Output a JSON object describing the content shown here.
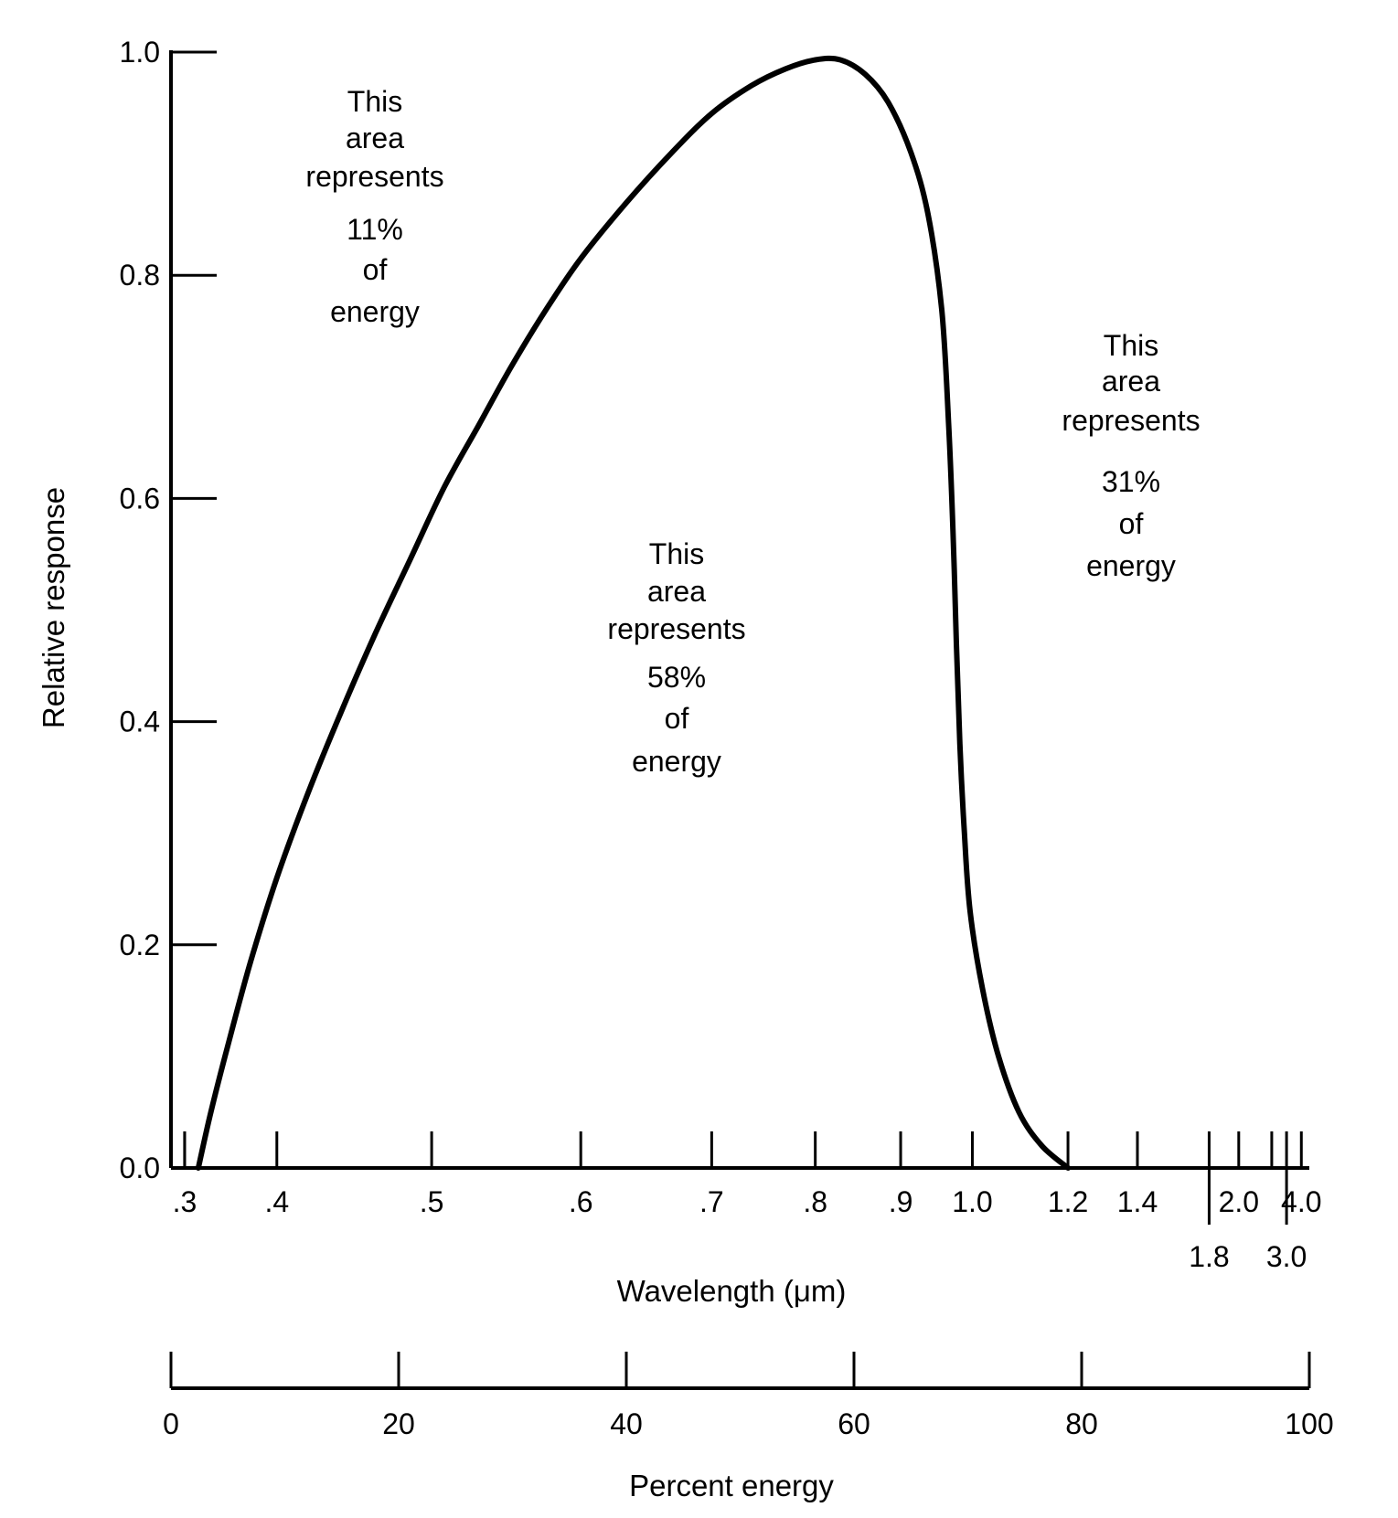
{
  "chart_data": {
    "type": "line",
    "title": "",
    "ylabel": "Relative response",
    "xlabel": "Wavelength (μm)",
    "ylim": [
      0,
      1.0
    ],
    "y_ticks": [
      "0.0",
      "0.2",
      "0.4",
      "0.6",
      "0.8",
      "1.0"
    ],
    "x_axis": {
      "label": "Wavelength (μm)",
      "scale": "percent-energy (nonlinear)",
      "ticks": [
        {
          "label": ".3",
          "energy": 1.2,
          "row": 1
        },
        {
          "label": ".4",
          "energy": 9.3,
          "row": 1
        },
        {
          "label": ".5",
          "energy": 22.9,
          "row": 1
        },
        {
          "label": ".6",
          "energy": 36.0,
          "row": 1
        },
        {
          "label": ".7",
          "energy": 47.5,
          "row": 1
        },
        {
          "label": ".8",
          "energy": 56.6,
          "row": 1
        },
        {
          "label": ".9",
          "energy": 64.1,
          "row": 1
        },
        {
          "label": "1.0",
          "energy": 70.4,
          "row": 1
        },
        {
          "label": "1.2",
          "energy": 78.8,
          "row": 1
        },
        {
          "label": "1.4",
          "energy": 84.9,
          "row": 1
        },
        {
          "label": "1.8",
          "energy": 91.2,
          "row": 2
        },
        {
          "label": "2.0",
          "energy": 93.8,
          "row": 1
        },
        {
          "label": "3.0",
          "energy": 98.0,
          "row": 2
        },
        {
          "label": "4.0",
          "energy": 99.3,
          "row": 1
        }
      ],
      "extra_tick_energy": [
        1.2,
        96.7
      ]
    },
    "secondary_x_axis": {
      "label": "Percent energy",
      "ticks": [
        "0",
        "20",
        "40",
        "60",
        "80",
        "100"
      ],
      "values": [
        0,
        20,
        40,
        60,
        80,
        100
      ],
      "xlim": [
        0,
        100
      ]
    },
    "series": [
      {
        "x_energy": [
          2.4,
          3.5,
          5.0,
          7.0,
          9.3,
          12.0,
          15.0,
          18.0,
          21.0,
          24.0,
          27.0,
          30.0,
          33.0,
          36.0,
          40.0,
          44.0,
          47.5,
          51.0,
          54.0,
          56.6,
          58.8,
          61.0,
          63.0,
          65.0,
          66.5,
          67.7,
          68.3,
          68.7,
          69.0,
          69.3,
          69.7,
          70.2,
          71.3,
          72.7,
          74.5,
          76.5,
          78.8
        ],
        "y": [
          0.0,
          0.05,
          0.11,
          0.185,
          0.26,
          0.335,
          0.41,
          0.48,
          0.545,
          0.61,
          0.665,
          0.72,
          0.77,
          0.815,
          0.865,
          0.91,
          0.945,
          0.97,
          0.985,
          0.993,
          0.993,
          0.98,
          0.955,
          0.91,
          0.855,
          0.77,
          0.67,
          0.57,
          0.47,
          0.38,
          0.3,
          0.23,
          0.16,
          0.1,
          0.05,
          0.02,
          0.0
        ]
      }
    ],
    "annotations": [
      {
        "id": "left",
        "lines": [
          "This",
          "area",
          "represents",
          "11%",
          "of",
          "energy"
        ]
      },
      {
        "id": "middle",
        "lines": [
          "This",
          "area",
          "represents",
          "58%",
          "of",
          "energy"
        ]
      },
      {
        "id": "right",
        "lines": [
          "This",
          "area",
          "represents",
          "31%",
          "of",
          "energy"
        ]
      }
    ],
    "grid": false,
    "legend": "none"
  }
}
